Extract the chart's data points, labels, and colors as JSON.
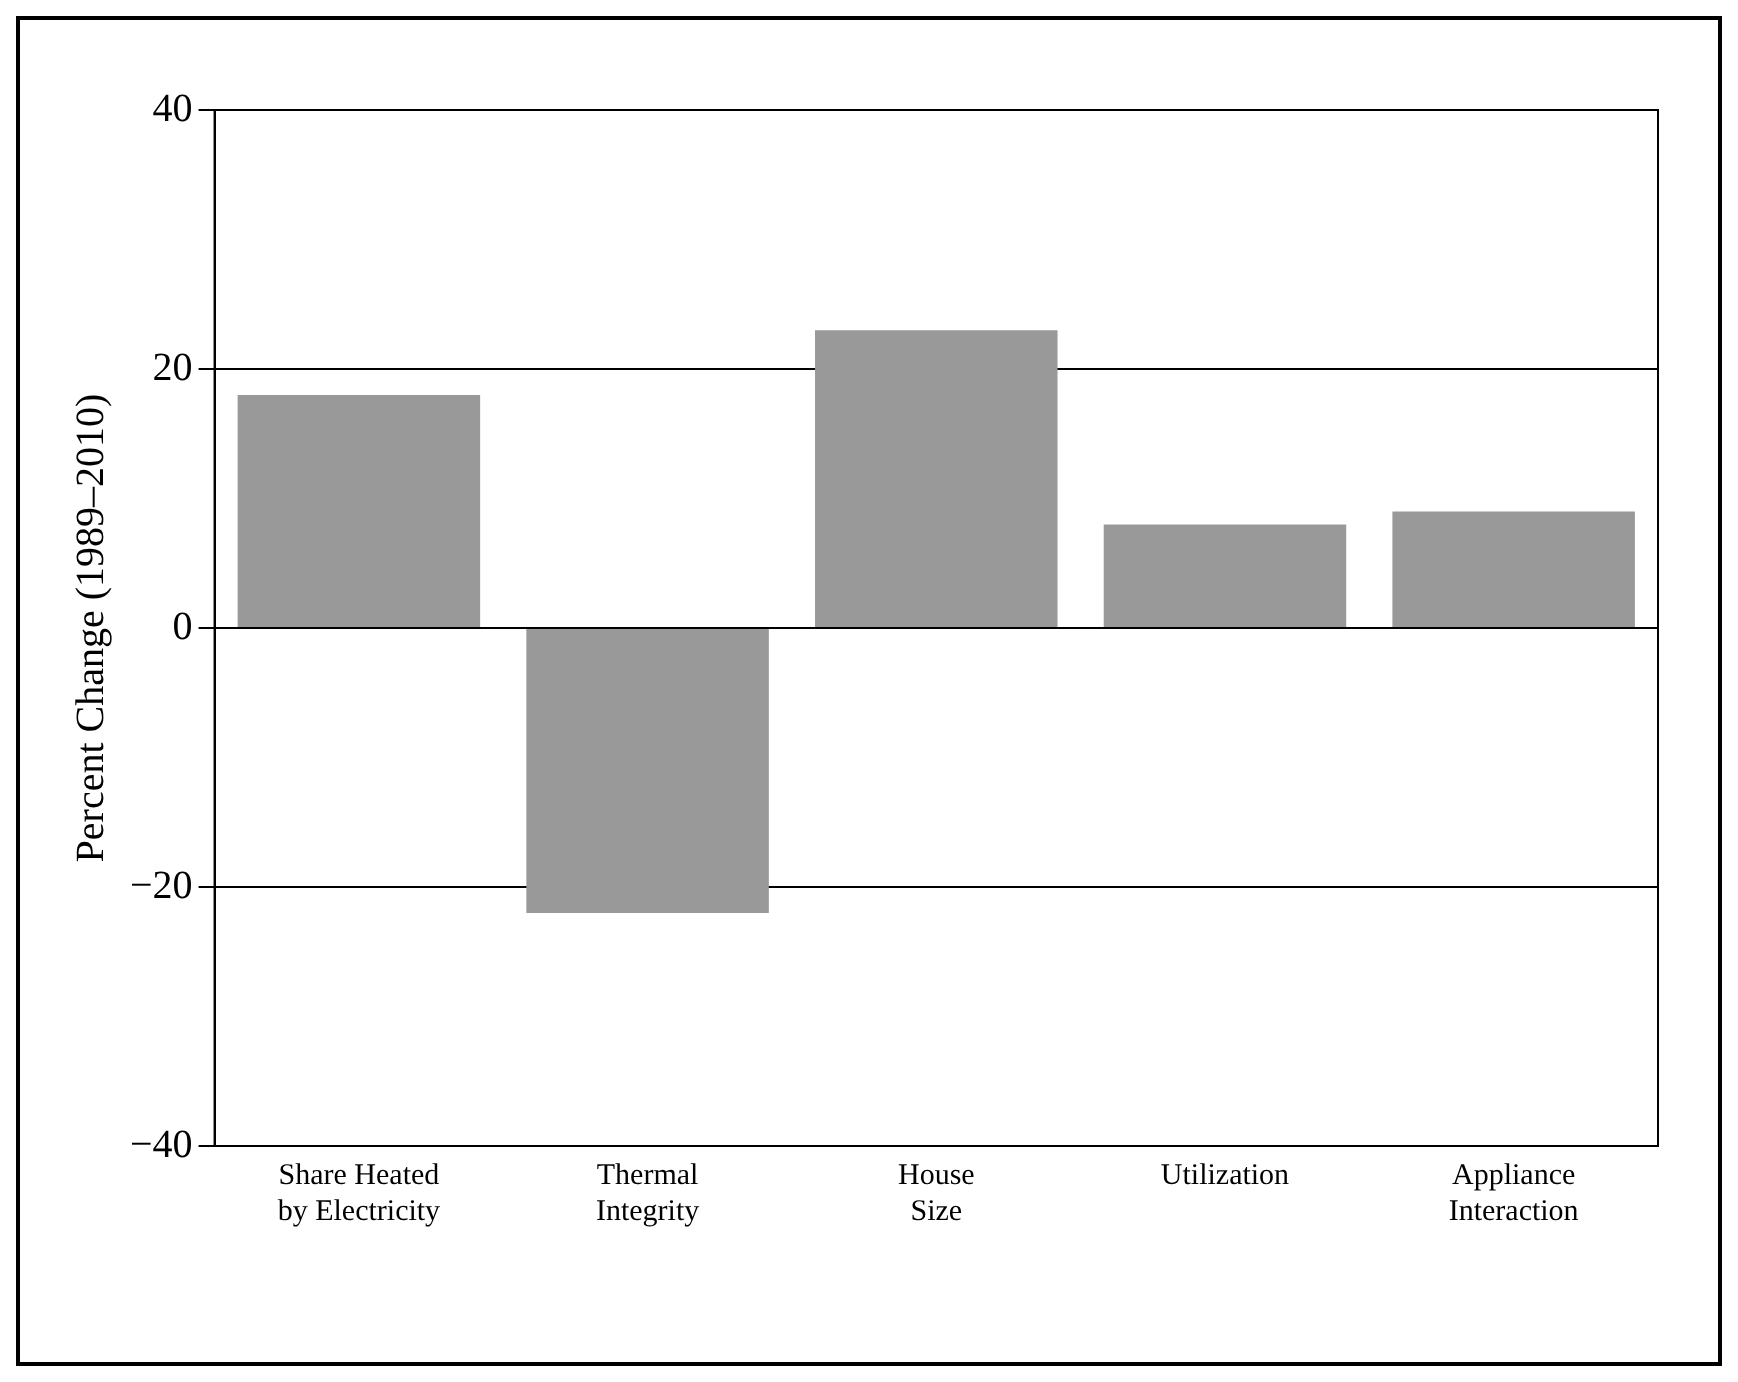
{
  "chart_data": {
    "type": "bar",
    "ylabel": "Percent Change (1989–2010)",
    "categories": [
      "Share Heated by Electricity",
      "Thermal Integrity",
      "House Size",
      "Utilization",
      "Appliance Interaction"
    ],
    "values": [
      18,
      -22,
      23,
      8,
      9
    ],
    "color": "#999999",
    "ylim": [
      -40,
      40
    ],
    "yticks": [
      -40,
      -20,
      0,
      20,
      40
    ],
    "grid": "y",
    "legend": false
  }
}
